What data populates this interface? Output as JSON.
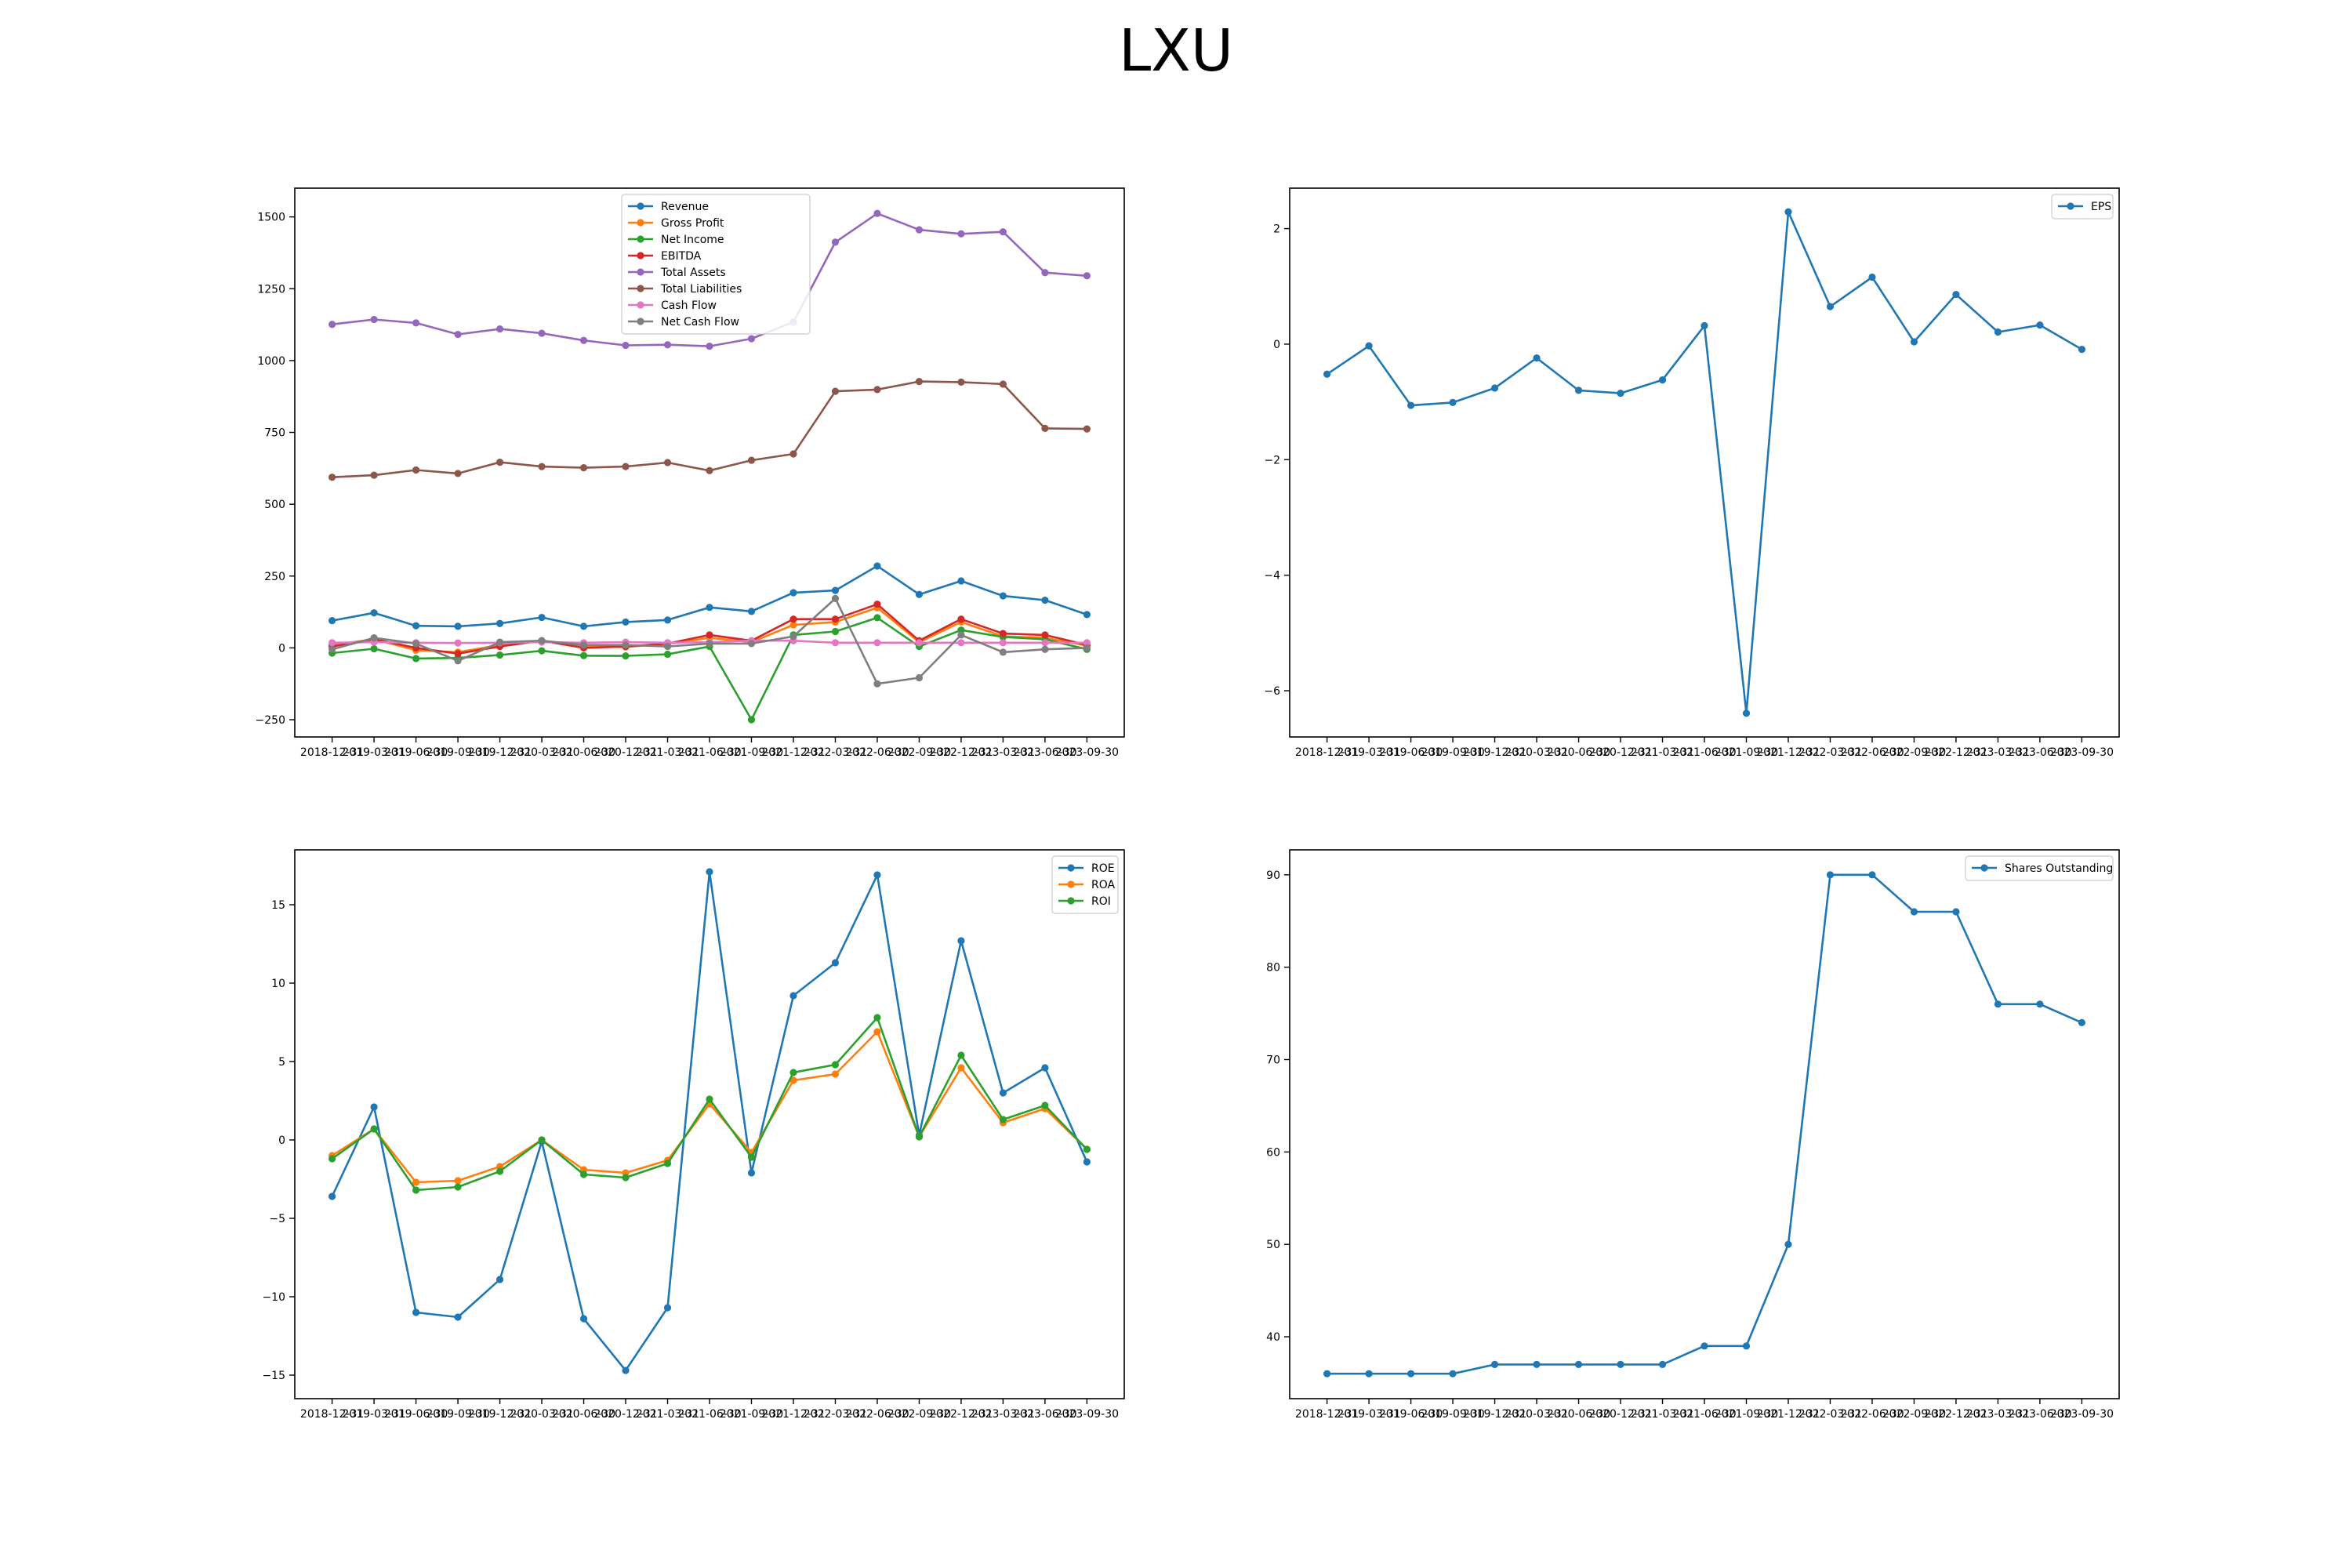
{
  "page": {
    "title": "LXU"
  },
  "dates": [
    "2018-12-31",
    "2019-03-31",
    "2019-06-30",
    "2019-09-30",
    "2019-12-31",
    "2020-03-31",
    "2020-06-30",
    "2020-12-31",
    "2021-03-31",
    "2021-06-30",
    "2021-09-30",
    "2021-12-31",
    "2022-03-31",
    "2022-06-30",
    "2022-09-30",
    "2022-12-31",
    "2023-03-31",
    "2023-06-30",
    "2023-09-30"
  ],
  "colors": {
    "tab_blue": "#1f77b4",
    "tab_orange": "#ff7f0e",
    "tab_green": "#2ca02c",
    "tab_red": "#d62728",
    "tab_purple": "#9467bd",
    "tab_brown": "#8c564b",
    "tab_pink": "#e377c2",
    "tab_gray": "#7f7f7f"
  },
  "chart_data": [
    {
      "type": "line",
      "ylim": [
        -310,
        1600
      ],
      "yticks": [
        -250,
        0,
        250,
        500,
        750,
        1000,
        1250,
        1500
      ],
      "legend_position": "top-center",
      "series": [
        {
          "name": "Revenue",
          "color": "#1f77b4",
          "values": [
            95,
            122,
            77,
            75,
            85,
            106,
            75,
            90,
            97,
            141,
            127,
            192,
            200,
            285,
            186,
            233,
            181,
            166,
            116
          ]
        },
        {
          "name": "Gross Profit",
          "color": "#ff7f0e",
          "values": [
            10,
            30,
            -8,
            -15,
            10,
            25,
            5,
            3,
            15,
            35,
            20,
            80,
            90,
            140,
            20,
            90,
            40,
            35,
            8
          ]
        },
        {
          "name": "Net Income",
          "color": "#2ca02c",
          "values": [
            -18,
            -3,
            -37,
            -35,
            -25,
            -10,
            -27,
            -28,
            -22,
            5,
            -250,
            45,
            57,
            105,
            5,
            62,
            38,
            30,
            -5
          ]
        },
        {
          "name": "EBITDA",
          "color": "#d62728",
          "values": [
            5,
            30,
            0,
            -20,
            5,
            25,
            0,
            5,
            15,
            45,
            25,
            100,
            100,
            152,
            25,
            100,
            50,
            45,
            10
          ]
        },
        {
          "name": "Total Assets",
          "color": "#9467bd",
          "values": [
            1126,
            1143,
            1131,
            1091,
            1110,
            1095,
            1070,
            1053,
            1055,
            1050,
            1076,
            1134,
            1412,
            1512,
            1455,
            1441,
            1448,
            1306,
            1295
          ]
        },
        {
          "name": "Total Liabilities",
          "color": "#8c564b",
          "values": [
            594,
            601,
            619,
            607,
            646,
            631,
            627,
            631,
            645,
            617,
            653,
            675,
            893,
            899,
            927,
            925,
            918,
            764,
            762
          ]
        },
        {
          "name": "Cash Flow",
          "color": "#e377c2",
          "values": [
            18,
            20,
            18,
            17,
            18,
            20,
            18,
            20,
            18,
            20,
            25,
            25,
            18,
            18,
            18,
            18,
            18,
            18,
            18
          ]
        },
        {
          "name": "Net Cash Flow",
          "color": "#7f7f7f",
          "values": [
            -5,
            35,
            15,
            -45,
            20,
            25,
            10,
            10,
            5,
            15,
            15,
            40,
            172,
            -125,
            -104,
            45,
            -15,
            -5,
            0
          ]
        }
      ]
    },
    {
      "type": "line",
      "ylim": [
        -6.8,
        2.7
      ],
      "yticks": [
        -6,
        -4,
        -2,
        0,
        2
      ],
      "legend_position": "top-right",
      "series": [
        {
          "name": "EPS",
          "color": "#1f77b4",
          "values": [
            -0.52,
            -0.03,
            -1.06,
            -1.01,
            -0.76,
            -0.24,
            -0.8,
            -0.85,
            -0.62,
            0.32,
            -6.39,
            2.29,
            0.65,
            1.16,
            0.04,
            0.86,
            0.21,
            0.33,
            -0.09
          ]
        }
      ]
    },
    {
      "type": "line",
      "ylim": [
        -16.5,
        18.5
      ],
      "yticks": [
        -15,
        -10,
        -5,
        0,
        5,
        10,
        15
      ],
      "legend_position": "top-right",
      "series": [
        {
          "name": "ROE",
          "color": "#1f77b4",
          "values": [
            -3.6,
            2.1,
            -11,
            -11.3,
            -8.9,
            -0.1,
            -11.4,
            -14.7,
            -10.7,
            17.1,
            -2.1,
            9.2,
            11.3,
            16.9,
            0.3,
            12.7,
            3,
            4.6,
            -1.4
          ]
        },
        {
          "name": "ROA",
          "color": "#ff7f0e",
          "values": [
            -1,
            0.7,
            -2.7,
            -2.6,
            -1.7,
            0,
            -1.9,
            -2.1,
            -1.3,
            2.3,
            -0.8,
            3.8,
            4.2,
            6.9,
            0.2,
            4.6,
            1.1,
            2,
            -0.6
          ]
        },
        {
          "name": "ROI",
          "color": "#2ca02c",
          "values": [
            -1.2,
            0.7,
            -3.2,
            -3,
            -2,
            0,
            -2.2,
            -2.4,
            -1.5,
            2.6,
            -1.1,
            4.3,
            4.8,
            7.8,
            0.2,
            5.4,
            1.3,
            2.2,
            -0.6
          ]
        }
      ]
    },
    {
      "type": "line",
      "ylim": [
        33.3,
        92.7
      ],
      "yticks": [
        40,
        50,
        60,
        70,
        80,
        90
      ],
      "legend_position": "top-right",
      "series": [
        {
          "name": "Shares Outstanding",
          "color": "#1f77b4",
          "values": [
            36,
            36,
            36,
            36,
            37,
            37,
            37,
            37,
            37,
            39,
            39,
            50,
            90,
            90,
            86,
            86,
            76,
            76,
            74
          ]
        }
      ]
    }
  ]
}
